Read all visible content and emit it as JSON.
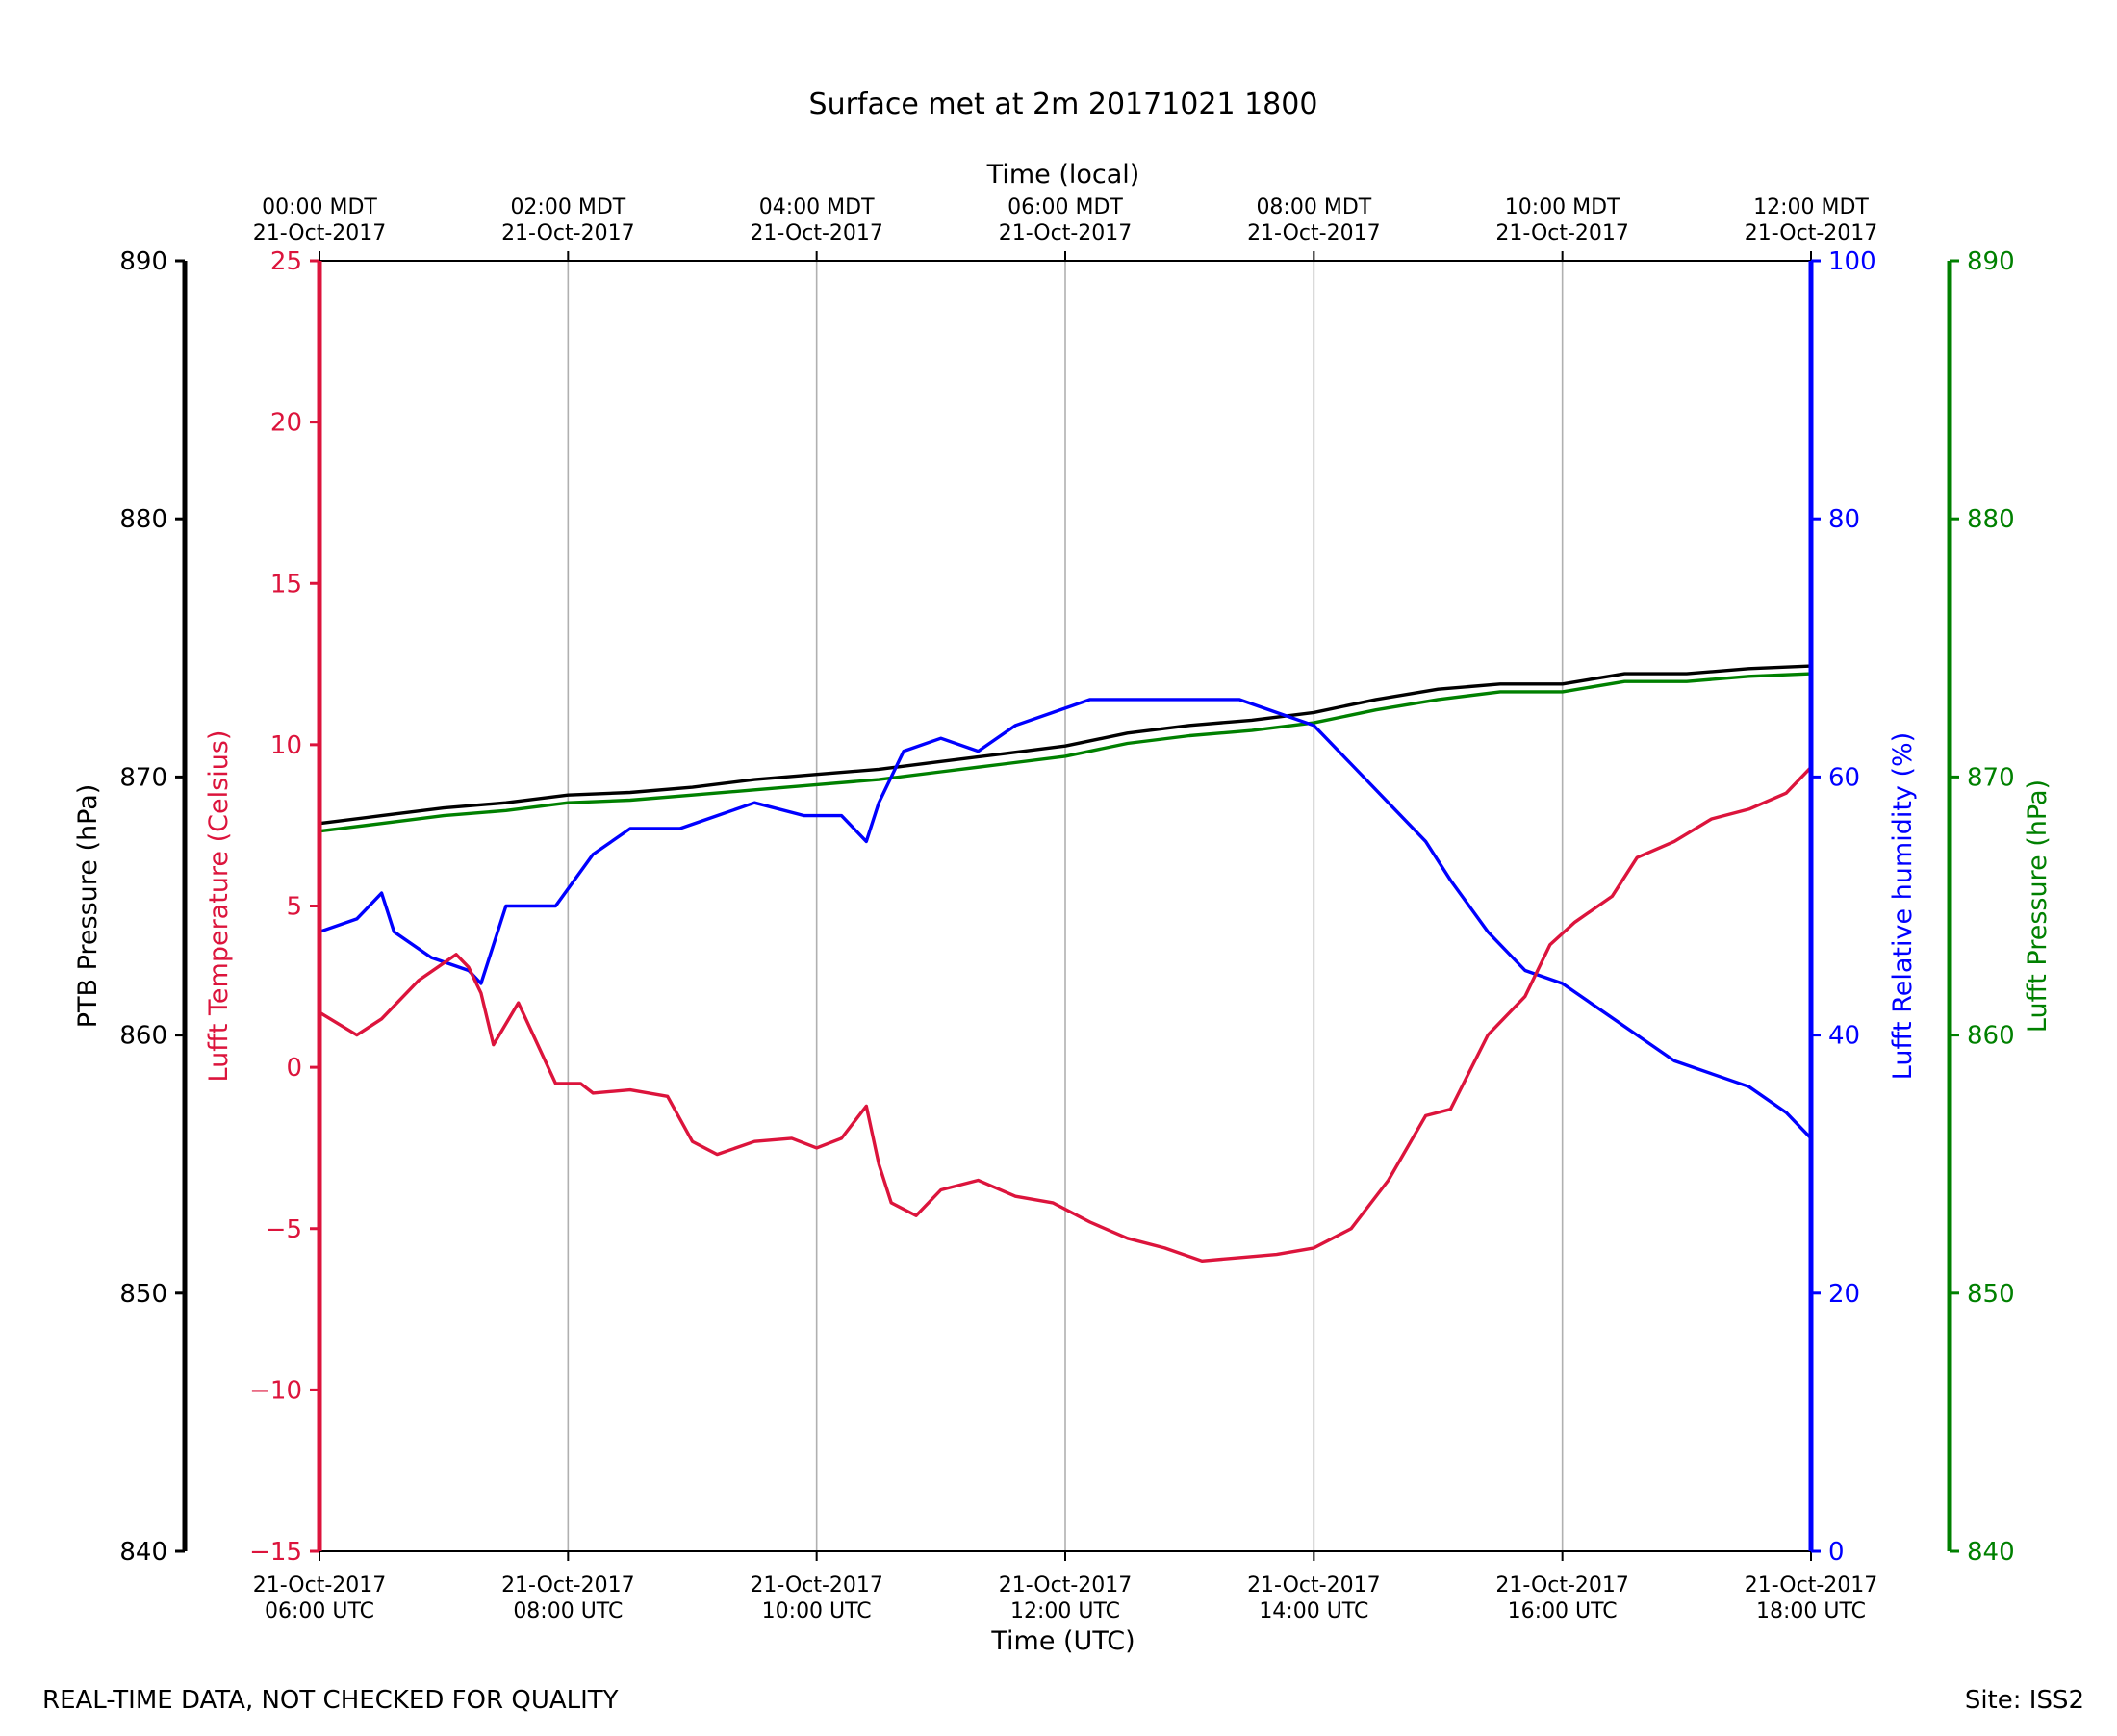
{
  "footer": {
    "left_note": "REAL-TIME DATA, NOT CHECKED FOR QUALITY",
    "site": "Site: ISS2"
  },
  "chart_data": {
    "type": "line",
    "title": "Surface met at 2m 20171021 1800",
    "xlabel": "Time (UTC)",
    "x2label": "Time (local)",
    "xlim": [
      6,
      18
    ],
    "xticks": [
      6,
      8,
      10,
      12,
      14,
      16,
      18
    ],
    "xtick_labels_bottom": [
      [
        "21-Oct-2017",
        "06:00 UTC"
      ],
      [
        "21-Oct-2017",
        "08:00 UTC"
      ],
      [
        "21-Oct-2017",
        "10:00 UTC"
      ],
      [
        "21-Oct-2017",
        "12:00 UTC"
      ],
      [
        "21-Oct-2017",
        "14:00 UTC"
      ],
      [
        "21-Oct-2017",
        "16:00 UTC"
      ],
      [
        "21-Oct-2017",
        "18:00 UTC"
      ]
    ],
    "xtick_labels_top": [
      [
        "00:00 MDT",
        "21-Oct-2017"
      ],
      [
        "02:00 MDT",
        "21-Oct-2017"
      ],
      [
        "04:00 MDT",
        "21-Oct-2017"
      ],
      [
        "06:00 MDT",
        "21-Oct-2017"
      ],
      [
        "08:00 MDT",
        "21-Oct-2017"
      ],
      [
        "10:00 MDT",
        "21-Oct-2017"
      ],
      [
        "12:00 MDT",
        "21-Oct-2017"
      ]
    ],
    "grid": "vertical",
    "axes": [
      {
        "id": "ptb",
        "label": "PTB Pressure (hPa)",
        "color": "#000000",
        "ylim": [
          840,
          890
        ],
        "ticks": [
          840,
          850,
          860,
          870,
          880,
          890
        ],
        "tick_labels": [
          "840",
          "850",
          "860",
          "870",
          "880",
          "890"
        ]
      },
      {
        "id": "temp",
        "label": "Lufft Temperature (Celsius)",
        "color": "#dc143c",
        "ylim": [
          -15,
          25
        ],
        "ticks": [
          -15,
          -10,
          -5,
          0,
          5,
          10,
          15,
          20,
          25
        ],
        "tick_labels": [
          "−15",
          "−10",
          "−5",
          "0",
          "5",
          "10",
          "15",
          "20",
          "25"
        ]
      },
      {
        "id": "rh",
        "label": "Lufft Relative humidity (%)",
        "color": "#0000ff",
        "ylim": [
          0,
          100
        ],
        "ticks": [
          0,
          20,
          40,
          60,
          80,
          100
        ],
        "tick_labels": [
          "0",
          "20",
          "40",
          "60",
          "80",
          "100"
        ]
      },
      {
        "id": "lp",
        "label": "Lufft Pressure (hPa)",
        "color": "#008000",
        "ylim": [
          840,
          890
        ],
        "ticks": [
          840,
          850,
          860,
          870,
          880,
          890
        ],
        "tick_labels": [
          "840",
          "850",
          "860",
          "870",
          "880",
          "890"
        ]
      }
    ],
    "series": [
      {
        "name": "PTB Pressure",
        "axis": "ptb",
        "color": "#000000",
        "x": [
          6.0,
          6.5,
          7.0,
          7.5,
          8.0,
          8.5,
          9.0,
          9.5,
          10.0,
          10.5,
          11.0,
          11.5,
          12.0,
          12.5,
          13.0,
          13.5,
          14.0,
          14.5,
          15.0,
          15.5,
          16.0,
          16.5,
          17.0,
          17.5,
          18.0
        ],
        "values": [
          868.2,
          868.5,
          868.8,
          869.0,
          869.3,
          869.4,
          869.6,
          869.9,
          870.1,
          870.3,
          870.6,
          870.9,
          871.2,
          871.7,
          872.0,
          872.2,
          872.5,
          873.0,
          873.4,
          873.6,
          873.6,
          874.0,
          874.0,
          874.2,
          874.3
        ]
      },
      {
        "name": "Lufft Pressure",
        "axis": "lp",
        "color": "#008000",
        "x": [
          6.0,
          6.5,
          7.0,
          7.5,
          8.0,
          8.5,
          9.0,
          9.5,
          10.0,
          10.5,
          11.0,
          11.5,
          12.0,
          12.5,
          13.0,
          13.5,
          14.0,
          14.5,
          15.0,
          15.5,
          16.0,
          16.5,
          17.0,
          17.5,
          18.0
        ],
        "values": [
          867.9,
          868.2,
          868.5,
          868.7,
          869.0,
          869.1,
          869.3,
          869.5,
          869.7,
          869.9,
          870.2,
          870.5,
          870.8,
          871.3,
          871.6,
          871.8,
          872.1,
          872.6,
          873.0,
          873.3,
          873.3,
          873.7,
          873.7,
          873.9,
          874.0
        ]
      },
      {
        "name": "Lufft Relative humidity",
        "axis": "rh",
        "color": "#0000ff",
        "x": [
          6.0,
          6.3,
          6.5,
          6.6,
          6.9,
          7.2,
          7.3,
          7.5,
          7.9,
          8.2,
          8.5,
          8.9,
          9.2,
          9.5,
          9.9,
          10.2,
          10.4,
          10.5,
          10.7,
          11.0,
          11.3,
          11.6,
          11.9,
          12.2,
          12.5,
          12.8,
          13.1,
          13.4,
          13.7,
          14.0,
          14.3,
          14.6,
          14.9,
          15.1,
          15.4,
          15.7,
          16.0,
          16.3,
          16.6,
          16.9,
          17.2,
          17.5,
          17.8,
          18.0
        ],
        "values": [
          48,
          49,
          51,
          48,
          46,
          45,
          44,
          50,
          50,
          54,
          56,
          56,
          57,
          58,
          57,
          57,
          55,
          58,
          62,
          63,
          62,
          64,
          65,
          66,
          66,
          66,
          66,
          66,
          65,
          64,
          61,
          58,
          55,
          52,
          48,
          45,
          44,
          42,
          40,
          38,
          37,
          36,
          34,
          32
        ]
      },
      {
        "name": "Lufft Temperature",
        "axis": "temp",
        "color": "#dc143c",
        "x": [
          6.0,
          6.3,
          6.5,
          6.8,
          7.1,
          7.2,
          7.3,
          7.4,
          7.6,
          7.9,
          8.1,
          8.2,
          8.5,
          8.8,
          9.0,
          9.2,
          9.5,
          9.8,
          10.0,
          10.2,
          10.4,
          10.5,
          10.6,
          10.8,
          11.0,
          11.3,
          11.6,
          11.9,
          12.2,
          12.5,
          12.8,
          13.1,
          13.4,
          13.7,
          14.0,
          14.3,
          14.6,
          14.9,
          15.1,
          15.4,
          15.7,
          15.9,
          16.1,
          16.4,
          16.6,
          16.9,
          17.2,
          17.5,
          17.8,
          18.0
        ],
        "values": [
          1.7,
          1.0,
          1.5,
          2.7,
          3.5,
          3.1,
          2.3,
          0.7,
          2.0,
          -0.5,
          -0.5,
          -0.8,
          -0.7,
          -0.9,
          -2.3,
          -2.7,
          -2.3,
          -2.2,
          -2.5,
          -2.2,
          -1.2,
          -3.0,
          -4.2,
          -4.6,
          -3.8,
          -3.5,
          -4.0,
          -4.2,
          -4.8,
          -5.3,
          -5.6,
          -6.0,
          -5.9,
          -5.8,
          -5.6,
          -5.0,
          -3.5,
          -1.5,
          -1.3,
          1.0,
          2.2,
          3.8,
          4.5,
          5.3,
          6.5,
          7.0,
          7.7,
          8.0,
          8.5,
          9.3
        ]
      }
    ]
  }
}
